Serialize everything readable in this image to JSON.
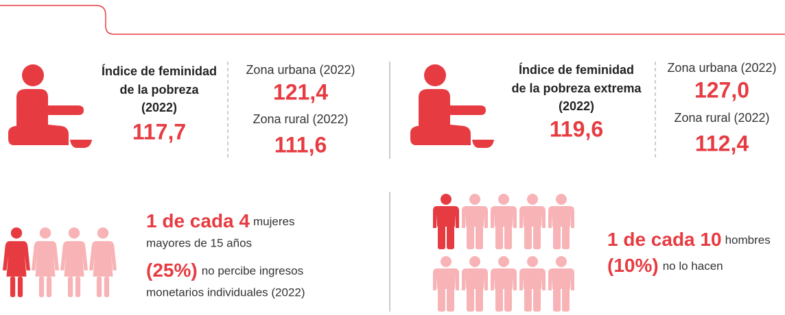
{
  "sections": [
    {
      "title_lines": [
        "Índice de feminidad",
        "de la pobreza",
        "(2022)"
      ],
      "value": "117,7",
      "urban_label": "Zona urbana (2022)",
      "urban_value": "121,4",
      "rural_label": "Zona rural (2022)",
      "rural_value": "111,6"
    },
    {
      "title_lines": [
        "Índice de feminidad",
        "de la pobreza extrema",
        "(2022)"
      ],
      "value": "119,6",
      "urban_label": "Zona urbana (2022)",
      "urban_value": "127,0",
      "rural_label": "Zona rural (2022)",
      "rural_value": "112,4"
    }
  ],
  "women": {
    "highlight": "1 de cada 4",
    "text1": "mujeres",
    "text2": "mayores de 15 años",
    "percent": "(25%)",
    "text3": "no percibe ingresos",
    "text4": "monetarios individuales (2022)"
  },
  "men": {
    "highlight": "1 de cada 10",
    "text1": "hombres",
    "percent": "(10%)",
    "text2": "no lo hacen"
  }
}
